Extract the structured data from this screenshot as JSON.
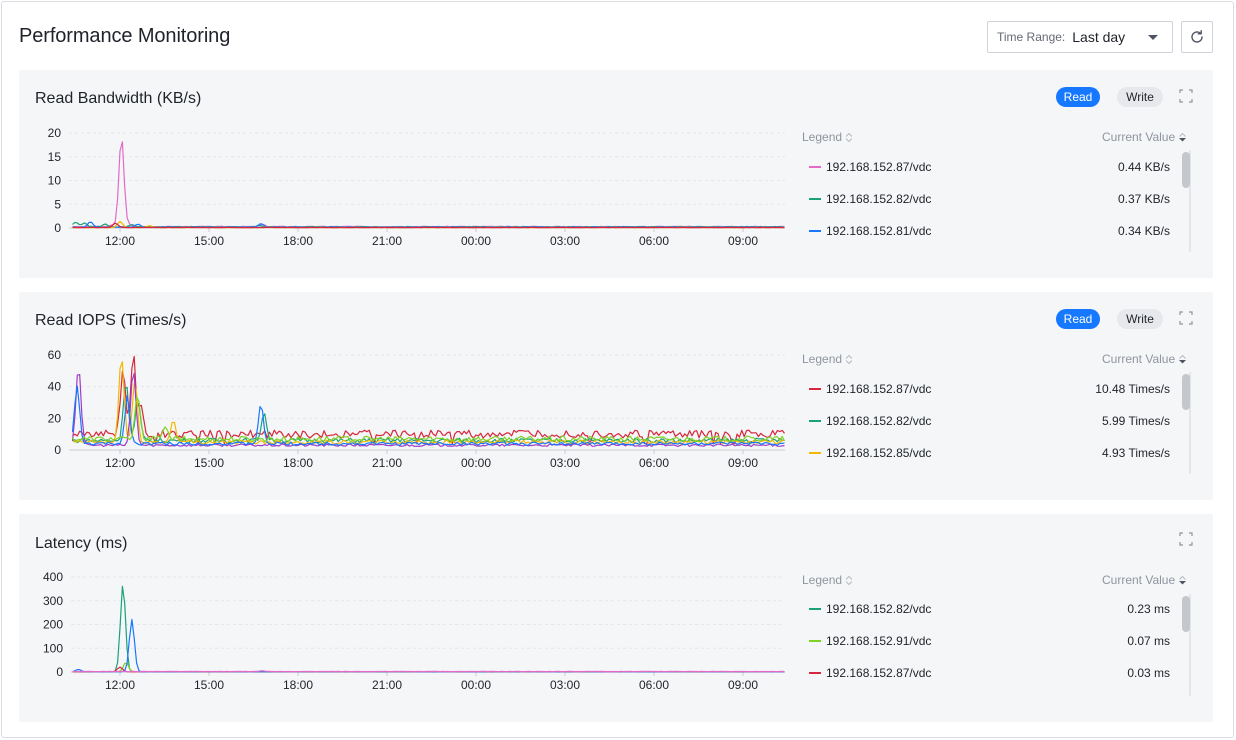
{
  "page": {
    "title": "Performance Monitoring"
  },
  "toolbar": {
    "time_range_label": "Time Range:",
    "time_range_value": "Last day"
  },
  "legend_header": {
    "name": "Legend",
    "value": "Current Value"
  },
  "icons": {
    "refresh": "refresh-icon",
    "expand": "expand-icon",
    "sort": "sort-icon",
    "caret": "chevron-down-icon"
  },
  "panels": [
    {
      "title": "Read Bandwidth (KB/s)",
      "toggle": {
        "read": "Read",
        "write": "Write",
        "active": "read"
      },
      "legend": [
        {
          "name": "192.168.152.87/vdc",
          "value": "0.44 KB/s",
          "color": "#e36ac7"
        },
        {
          "name": "192.168.152.82/vdc",
          "value": "0.37 KB/s",
          "color": "#1aa179"
        },
        {
          "name": "192.168.152.81/vdc",
          "value": "0.34 KB/s",
          "color": "#1677ff"
        }
      ]
    },
    {
      "title": "Read IOPS (Times/s)",
      "toggle": {
        "read": "Read",
        "write": "Write",
        "active": "read"
      },
      "legend": [
        {
          "name": "192.168.152.87/vdc",
          "value": "10.48 Times/s",
          "color": "#d7263d"
        },
        {
          "name": "192.168.152.82/vdc",
          "value": "5.99 Times/s",
          "color": "#1aa179"
        },
        {
          "name": "192.168.152.85/vdc",
          "value": "4.93 Times/s",
          "color": "#f5b700"
        }
      ]
    },
    {
      "title": "Latency (ms)",
      "toggle": null,
      "legend": [
        {
          "name": "192.168.152.82/vdc",
          "value": "0.23 ms",
          "color": "#1aa179"
        },
        {
          "name": "192.168.152.91/vdc",
          "value": "0.07 ms",
          "color": "#7ed321"
        },
        {
          "name": "192.168.152.87/vdc",
          "value": "0.03 ms",
          "color": "#d7263d"
        }
      ]
    }
  ],
  "chart_data": [
    {
      "type": "line",
      "x_ticks": [
        "12:00",
        "15:00",
        "18:00",
        "21:00",
        "00:00",
        "03:00",
        "06:00",
        "09:00"
      ],
      "y_ticks": [
        0,
        5,
        10,
        15,
        20
      ],
      "ylim": [
        0,
        20
      ],
      "series": [
        {
          "name": "192.168.152.87/vdc",
          "color": "#e36ac7",
          "peaks": [
            [
              11.75,
              0.3
            ],
            [
              12.05,
              19.0
            ],
            [
              12.3,
              0.4
            ],
            [
              16.8,
              0.4
            ]
          ],
          "base": 0.3
        },
        {
          "name": "192.168.152.82/vdc",
          "color": "#1aa179",
          "peaks": [
            [
              10.5,
              1.0
            ],
            [
              10.8,
              0.8
            ],
            [
              11.5,
              0.6
            ],
            [
              12.4,
              0.5
            ],
            [
              16.7,
              0.3
            ]
          ],
          "base": 0.25
        },
        {
          "name": "192.168.152.81/vdc",
          "color": "#1677ff",
          "peaks": [
            [
              11.0,
              1.1
            ],
            [
              12.6,
              0.6
            ],
            [
              16.75,
              0.7
            ]
          ],
          "base": 0.2
        },
        {
          "name": "",
          "color": "#f5b700",
          "peaks": [
            [
              12.0,
              1.3
            ],
            [
              13.0,
              0.4
            ]
          ],
          "base": 0.1
        },
        {
          "name": "",
          "color": "#d7263d",
          "peaks": [
            [
              11.85,
              0.9
            ]
          ],
          "base": 0.1
        }
      ]
    },
    {
      "type": "line",
      "x_ticks": [
        "12:00",
        "15:00",
        "18:00",
        "21:00",
        "00:00",
        "03:00",
        "06:00",
        "09:00"
      ],
      "y_ticks": [
        0,
        20,
        40,
        60
      ],
      "ylim": [
        0,
        60
      ],
      "series": [
        {
          "name": "192.168.152.87/vdc",
          "color": "#d7263d",
          "peaks": [
            [
              12.1,
              40
            ],
            [
              12.45,
              50
            ],
            [
              12.7,
              20
            ]
          ],
          "base": 10,
          "dips": true
        },
        {
          "name": "192.168.152.82/vdc",
          "color": "#1aa179",
          "peaks": [
            [
              12.2,
              38
            ],
            [
              12.6,
              25
            ],
            [
              16.85,
              18
            ]
          ],
          "base": 6
        },
        {
          "name": "192.168.152.85/vdc",
          "color": "#f5b700",
          "peaks": [
            [
              12.05,
              55
            ],
            [
              12.5,
              38
            ],
            [
              13.8,
              14
            ]
          ],
          "base": 5
        },
        {
          "name": "",
          "color": "#a03cc6",
          "peaks": [
            [
              10.6,
              50
            ],
            [
              12.45,
              48
            ]
          ],
          "base": 3
        },
        {
          "name": "",
          "color": "#1677ff",
          "peaks": [
            [
              10.55,
              36
            ],
            [
              12.25,
              30
            ],
            [
              16.75,
              24
            ]
          ],
          "base": 4
        },
        {
          "name": "",
          "color": "#7ed321",
          "peaks": [
            [
              12.6,
              28
            ],
            [
              13.5,
              8
            ]
          ],
          "base": 7
        }
      ]
    },
    {
      "type": "line",
      "x_ticks": [
        "12:00",
        "15:00",
        "18:00",
        "21:00",
        "00:00",
        "03:00",
        "06:00",
        "09:00"
      ],
      "y_ticks": [
        0,
        100,
        200,
        300,
        400
      ],
      "ylim": [
        0,
        400
      ],
      "series": [
        {
          "name": "192.168.152.82/vdc",
          "color": "#1aa179",
          "peaks": [
            [
              12.1,
              370
            ]
          ],
          "base": 1
        },
        {
          "name": "192.168.152.91/vdc",
          "color": "#7ed321",
          "peaks": [
            [
              12.2,
              40
            ]
          ],
          "base": 1
        },
        {
          "name": "192.168.152.87/vdc",
          "color": "#d7263d",
          "peaks": [
            [
              12.0,
              20
            ]
          ],
          "base": 1
        },
        {
          "name": "",
          "color": "#1677ff",
          "peaks": [
            [
              10.6,
              10
            ],
            [
              12.4,
              220
            ]
          ],
          "base": 1
        },
        {
          "name": "",
          "color": "#e36ac7",
          "peaks": [
            [
              16.8,
              3
            ]
          ],
          "base": 2
        }
      ]
    }
  ]
}
